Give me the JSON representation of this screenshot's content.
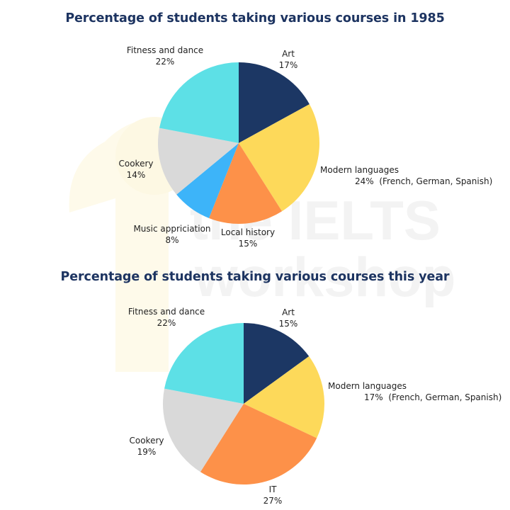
{
  "watermark": {
    "line1": "the IELTS",
    "line2": "workshop"
  },
  "chart_data": [
    {
      "type": "pie",
      "title": "Percentage of students taking various courses in 1985",
      "categories": [
        "Art",
        "Modern languages",
        "Local history",
        "Music appriciation",
        "Cookery",
        "Fitness and dance"
      ],
      "values": [
        17,
        24,
        15,
        8,
        14,
        22
      ],
      "value_labels": [
        "17%",
        "24%",
        "15%",
        "8%",
        "14%",
        "22%"
      ],
      "notes": {
        "Modern languages": "(French, German, Spanish)"
      },
      "colors": [
        "#1c3764",
        "#fdd95a",
        "#fd9149",
        "#3db4f9",
        "#d9d9d9",
        "#5de0e6"
      ],
      "start_angle_deg": 0,
      "direction": "clockwise"
    },
    {
      "type": "pie",
      "title": "Percentage of students taking various courses this year",
      "categories": [
        "Art",
        "Modern languages",
        "IT",
        "Cookery",
        "Fitness and dance"
      ],
      "values": [
        15,
        17,
        27,
        19,
        22
      ],
      "value_labels": [
        "15%",
        "17%",
        "27%",
        "19%",
        "22%"
      ],
      "notes": {
        "Modern languages": "(French, German, Spanish)"
      },
      "colors": [
        "#1c3764",
        "#fdd95a",
        "#fd9149",
        "#d9d9d9",
        "#5de0e6"
      ],
      "start_angle_deg": 0,
      "direction": "clockwise"
    }
  ]
}
